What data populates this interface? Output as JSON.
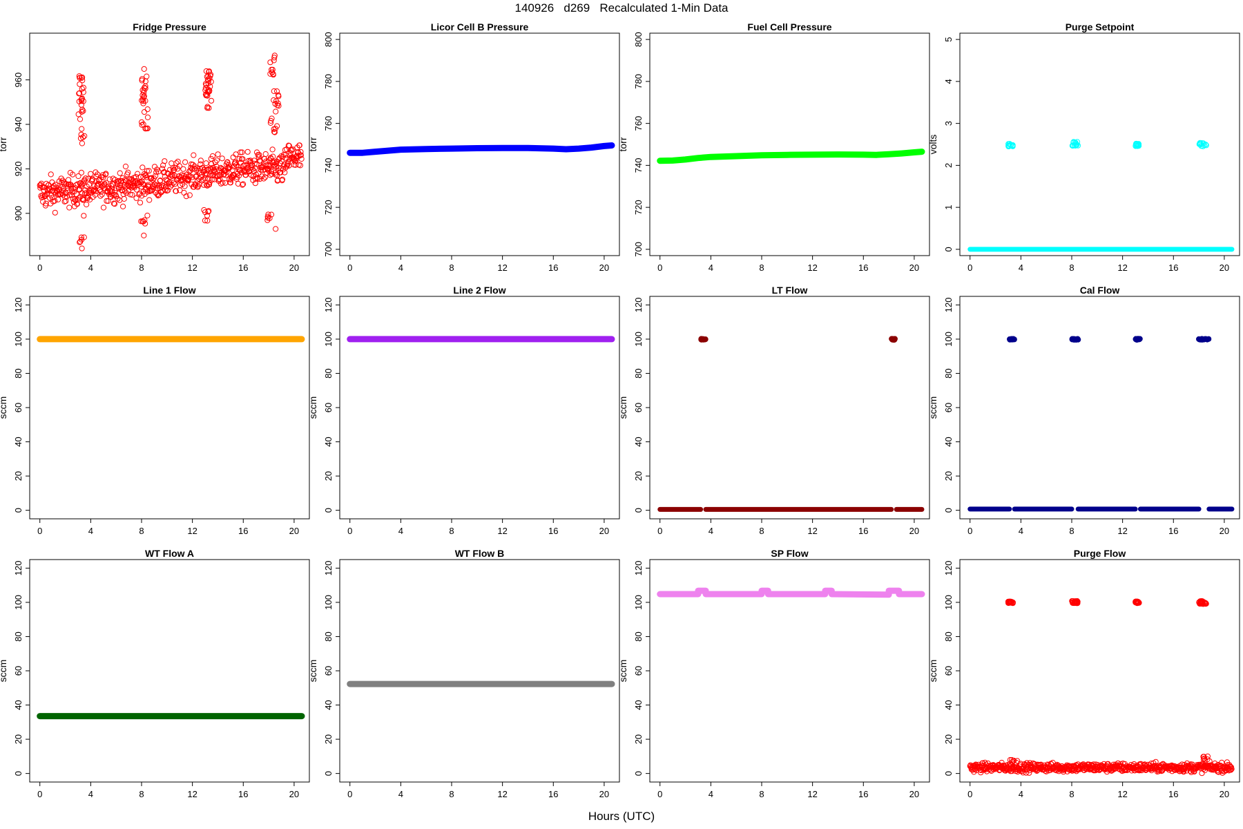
{
  "figure": {
    "title": "140926   d269   Recalculated 1-Min Data",
    "xlabel": "Hours (UTC)"
  },
  "chart_data": [
    {
      "type": "scatter",
      "title": "Fridge Pressure",
      "ylabel": "torr",
      "xlim": [
        -0.8,
        21.2
      ],
      "ylim": [
        881,
        981
      ],
      "xticks": [
        "0",
        "4",
        "8",
        "12",
        "16",
        "20"
      ],
      "yticks": [
        "900",
        "920",
        "940",
        "960"
      ],
      "color": "#ff0000",
      "marker": "open",
      "series_pattern": "noisy",
      "baseline": [
        [
          0,
          909
        ],
        [
          4,
          911
        ],
        [
          8,
          913
        ],
        [
          12,
          917
        ],
        [
          16,
          920
        ],
        [
          19.2,
          920
        ],
        [
          19.5,
          925
        ],
        [
          20.6,
          925
        ]
      ],
      "noise": 7,
      "excursions": [
        {
          "x": [
            3.0,
            3.5
          ],
          "y": [
            930,
            962
          ]
        },
        {
          "x": [
            8.0,
            8.5
          ],
          "y": [
            938,
            968
          ]
        },
        {
          "x": [
            13.0,
            13.5
          ],
          "y": [
            946,
            964
          ]
        },
        {
          "x": [
            18.0,
            18.8
          ],
          "y": [
            936,
            972
          ]
        }
      ],
      "dips": [
        {
          "x": [
            3.0,
            3.6
          ],
          "y": [
            884,
            900
          ]
        },
        {
          "x": [
            7.9,
            8.5
          ],
          "y": [
            889,
            900
          ]
        },
        {
          "x": [
            12.9,
            13.3
          ],
          "y": [
            896,
            902
          ]
        },
        {
          "x": [
            17.9,
            18.6
          ],
          "y": [
            891,
            900
          ]
        }
      ]
    },
    {
      "type": "line",
      "title": "Licor Cell B Pressure",
      "ylabel": "torr",
      "xlim": [
        -0.8,
        21.2
      ],
      "ylim": [
        697,
        803
      ],
      "xticks": [
        "0",
        "4",
        "8",
        "12",
        "16",
        "20"
      ],
      "yticks": [
        "700",
        "720",
        "740",
        "760",
        "780",
        "800"
      ],
      "color": "#0000ff",
      "x": [
        0,
        1,
        2,
        3,
        4,
        6,
        8,
        10,
        12,
        14,
        16,
        17,
        18,
        19,
        20,
        20.6
      ],
      "y": [
        746,
        746,
        746.5,
        747,
        747.5,
        747.8,
        748,
        748.2,
        748.3,
        748.3,
        748,
        747.7,
        748,
        748.5,
        749.2,
        749.5
      ]
    },
    {
      "type": "line",
      "title": "Fuel Cell Pressure",
      "ylabel": "torr",
      "xlim": [
        -0.8,
        21.2
      ],
      "ylim": [
        697,
        803
      ],
      "xticks": [
        "0",
        "4",
        "8",
        "12",
        "16",
        "20"
      ],
      "yticks": [
        "700",
        "720",
        "740",
        "760",
        "780",
        "800"
      ],
      "color": "#00ff00",
      "x": [
        0,
        1,
        2,
        3,
        4,
        6,
        8,
        10,
        12,
        14,
        16,
        17,
        18,
        19,
        20,
        20.6
      ],
      "y": [
        742.2,
        742.3,
        742.8,
        743.5,
        744,
        744.4,
        744.8,
        745,
        745.1,
        745.2,
        745.1,
        745,
        745.3,
        745.7,
        746.2,
        746.5
      ]
    },
    {
      "type": "scatter",
      "title": "Purge Setpoint",
      "ylabel": "volts",
      "xlim": [
        -0.8,
        21.2
      ],
      "ylim": [
        -0.15,
        5.15
      ],
      "xticks": [
        "0",
        "4",
        "8",
        "12",
        "16",
        "20"
      ],
      "yticks": [
        "0",
        "1",
        "2",
        "3",
        "4",
        "5"
      ],
      "color": "#00ffff",
      "marker": "open",
      "series_pattern": "steps",
      "base": 0,
      "events": [
        {
          "x": [
            3.0,
            3.4
          ],
          "y": [
            2.45,
            2.52
          ]
        },
        {
          "x": [
            8.0,
            8.5
          ],
          "y": [
            2.45,
            2.56
          ]
        },
        {
          "x": [
            13.0,
            13.3
          ],
          "y": [
            2.45,
            2.52
          ]
        },
        {
          "x": [
            18.0,
            18.6
          ],
          "y": [
            2.45,
            2.54
          ]
        }
      ],
      "gaps": []
    },
    {
      "type": "line",
      "title": "Line 1 Flow",
      "ylabel": "sccm",
      "xlim": [
        -0.8,
        21.2
      ],
      "ylim": [
        -5,
        125
      ],
      "xticks": [
        "0",
        "4",
        "8",
        "12",
        "16",
        "20"
      ],
      "yticks": [
        "0",
        "20",
        "40",
        "60",
        "80",
        "100",
        "120"
      ],
      "color": "#ffa500",
      "x": [
        0,
        20.6
      ],
      "y": [
        100,
        100
      ]
    },
    {
      "type": "line",
      "title": "Line 2 Flow",
      "ylabel": "sccm",
      "xlim": [
        -0.8,
        21.2
      ],
      "ylim": [
        -5,
        125
      ],
      "xticks": [
        "0",
        "4",
        "8",
        "12",
        "16",
        "20"
      ],
      "yticks": [
        "0",
        "20",
        "40",
        "60",
        "80",
        "100",
        "120"
      ],
      "color": "#a020f0",
      "x": [
        0,
        20.6
      ],
      "y": [
        100,
        100
      ]
    },
    {
      "type": "scatter",
      "title": "LT Flow",
      "ylabel": "sccm",
      "xlim": [
        -0.8,
        21.2
      ],
      "ylim": [
        -5,
        125
      ],
      "xticks": [
        "0",
        "4",
        "8",
        "12",
        "16",
        "20"
      ],
      "yticks": [
        "0",
        "20",
        "40",
        "60",
        "80",
        "100",
        "120"
      ],
      "color": "#8b0000",
      "marker": "filled",
      "series_pattern": "steps",
      "base": 0.5,
      "events": [
        {
          "x": [
            3.2,
            3.6
          ],
          "y": [
            99.6,
            100.2
          ]
        },
        {
          "x": [
            18.2,
            18.6
          ],
          "y": [
            99.6,
            100.2
          ]
        }
      ],
      "gaps": [
        [
          3.2,
          3.6
        ],
        [
          18.2,
          18.6
        ]
      ]
    },
    {
      "type": "scatter",
      "title": "Cal Flow",
      "ylabel": "sccm",
      "xlim": [
        -0.8,
        21.2
      ],
      "ylim": [
        -5,
        125
      ],
      "xticks": [
        "0",
        "4",
        "8",
        "12",
        "16",
        "20"
      ],
      "yticks": [
        "0",
        "20",
        "40",
        "60",
        "80",
        "100",
        "120"
      ],
      "color": "#00008b",
      "marker": "filled",
      "series_pattern": "steps",
      "base": 0.7,
      "events": [
        {
          "x": [
            3.1,
            3.5
          ],
          "y": [
            99.6,
            100.2
          ]
        },
        {
          "x": [
            8.0,
            8.5
          ],
          "y": [
            99.6,
            100.2
          ]
        },
        {
          "x": [
            13.0,
            13.4
          ],
          "y": [
            99.6,
            100.2
          ]
        },
        {
          "x": [
            18.0,
            18.8
          ],
          "y": [
            99.6,
            100.2
          ]
        }
      ],
      "gaps": [
        [
          3.1,
          3.5
        ],
        [
          8.0,
          8.5
        ],
        [
          13.0,
          13.4
        ],
        [
          18.0,
          18.8
        ]
      ]
    },
    {
      "type": "line",
      "title": "WT Flow A",
      "ylabel": "sccm",
      "xlim": [
        -0.8,
        21.2
      ],
      "ylim": [
        -5,
        125
      ],
      "xticks": [
        "0",
        "4",
        "8",
        "12",
        "16",
        "20"
      ],
      "yticks": [
        "0",
        "20",
        "40",
        "60",
        "80",
        "100",
        "120"
      ],
      "color": "#006400",
      "x": [
        0,
        20.6
      ],
      "y": [
        33.5,
        33.5
      ]
    },
    {
      "type": "line",
      "title": "WT Flow B",
      "ylabel": "sccm",
      "xlim": [
        -0.8,
        21.2
      ],
      "ylim": [
        -5,
        125
      ],
      "xticks": [
        "0",
        "4",
        "8",
        "12",
        "16",
        "20"
      ],
      "yticks": [
        "0",
        "20",
        "40",
        "60",
        "80",
        "100",
        "120"
      ],
      "color": "#808080",
      "x": [
        0,
        20.6
      ],
      "y": [
        52.3,
        52.3
      ]
    },
    {
      "type": "line",
      "title": "SP Flow",
      "ylabel": "sccm",
      "xlim": [
        -0.8,
        21.2
      ],
      "ylim": [
        -5,
        125
      ],
      "xticks": [
        "0",
        "4",
        "8",
        "12",
        "16",
        "20"
      ],
      "yticks": [
        "0",
        "20",
        "40",
        "60",
        "80",
        "100",
        "120"
      ],
      "color": "#ee82ee",
      "x": [
        0,
        3.0,
        3.0,
        3.6,
        3.6,
        8.0,
        8.0,
        8.5,
        8.5,
        13.0,
        13.0,
        13.5,
        13.5,
        18.0,
        18.0,
        18.8,
        18.8,
        20.6
      ],
      "y": [
        104.8,
        104.8,
        106.8,
        106.8,
        104.8,
        104.8,
        106.8,
        106.8,
        104.8,
        104.8,
        106.8,
        106.8,
        104.8,
        104.5,
        106.8,
        106.8,
        104.8,
        104.8
      ]
    },
    {
      "type": "scatter",
      "title": "Purge Flow",
      "ylabel": "sccm",
      "xlim": [
        -0.8,
        21.2
      ],
      "ylim": [
        -5,
        125
      ],
      "xticks": [
        "0",
        "4",
        "8",
        "12",
        "16",
        "20"
      ],
      "yticks": [
        "0",
        "20",
        "40",
        "60",
        "80",
        "100",
        "120"
      ],
      "color": "#ff0000",
      "marker": "open",
      "series_pattern": "noisy",
      "baseline": [
        [
          0,
          3.5
        ],
        [
          20.6,
          3.5
        ]
      ],
      "noise": 2.5,
      "excursions": [
        {
          "x": [
            3.0,
            3.4
          ],
          "y": [
            99.5,
            100.5
          ]
        },
        {
          "x": [
            8.0,
            8.5
          ],
          "y": [
            99.5,
            100.8
          ]
        },
        {
          "x": [
            13.0,
            13.3
          ],
          "y": [
            99.5,
            100.5
          ]
        },
        {
          "x": [
            18.0,
            18.6
          ],
          "y": [
            99.0,
            100.8
          ]
        }
      ],
      "dips": [
        {
          "x": [
            3.0,
            3.8
          ],
          "y": [
            6,
            9
          ]
        },
        {
          "x": [
            18.2,
            18.8
          ],
          "y": [
            7,
            10
          ]
        }
      ]
    }
  ]
}
